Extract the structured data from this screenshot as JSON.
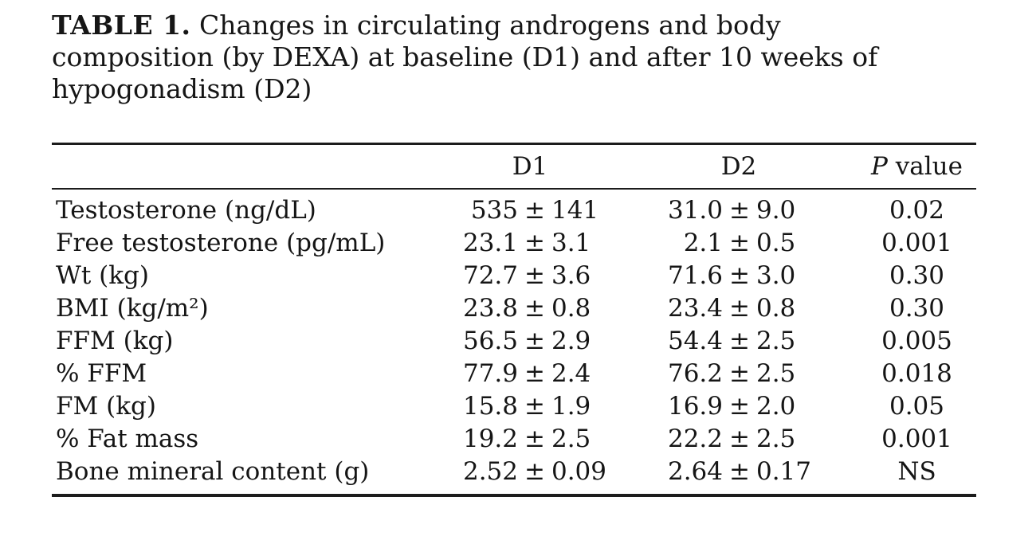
{
  "title": {
    "label": "TABLE 1.",
    "line1": "Changes in circulating androgens and body",
    "line2": "composition (by DEXA) at baseline (D1) and after 10 weeks of",
    "line3": "hypogonadism (D2)"
  },
  "table": {
    "pm": "±",
    "header": {
      "d1": "D1",
      "d2": "D2",
      "p_italic": "P",
      "p_rest": " value"
    },
    "rows": [
      {
        "label": "Testosterone (ng/dL)",
        "d1_mean": "535",
        "d1_sd": "141",
        "d2_mean": "31.0",
        "d2_sd": "9.0",
        "p": "0.02"
      },
      {
        "label": "Free testosterone (pg/mL)",
        "d1_mean": "23.1",
        "d1_sd": "3.1",
        "d2_mean": "2.1",
        "d2_sd": "0.5",
        "p": "0.001"
      },
      {
        "label": "Wt (kg)",
        "d1_mean": "72.7",
        "d1_sd": "3.6",
        "d2_mean": "71.6",
        "d2_sd": "3.0",
        "p": "0.30"
      },
      {
        "label": "BMI (kg/m²)",
        "d1_mean": "23.8",
        "d1_sd": "0.8",
        "d2_mean": "23.4",
        "d2_sd": "0.8",
        "p": "0.30"
      },
      {
        "label": "FFM (kg)",
        "d1_mean": "56.5",
        "d1_sd": "2.9",
        "d2_mean": "54.4",
        "d2_sd": "2.5",
        "p": "0.005"
      },
      {
        "label": "% FFM",
        "d1_mean": "77.9",
        "d1_sd": "2.4",
        "d2_mean": "76.2",
        "d2_sd": "2.5",
        "p": "0.018"
      },
      {
        "label": "FM (kg)",
        "d1_mean": "15.8",
        "d1_sd": "1.9",
        "d2_mean": "16.9",
        "d2_sd": "2.0",
        "p": "0.05"
      },
      {
        "label": "% Fat mass",
        "d1_mean": "19.2",
        "d1_sd": "2.5",
        "d2_mean": "22.2",
        "d2_sd": "2.5",
        "p": "0.001"
      },
      {
        "label": "Bone mineral content (g)",
        "d1_mean": "2.52",
        "d1_sd": "0.09",
        "d2_mean": "2.64",
        "d2_sd": "0.17",
        "p": "NS"
      }
    ]
  }
}
